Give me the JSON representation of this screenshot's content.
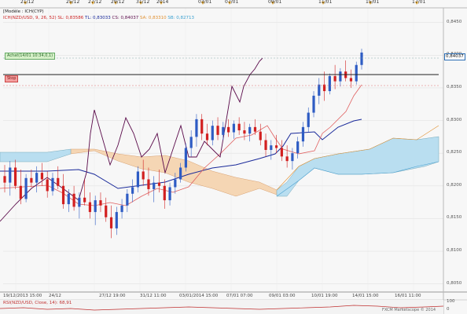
{
  "top_dates": [
    "21/12",
    "25/12",
    "27/12",
    "29/12",
    "31/12",
    "2014",
    "03/01",
    "07/01",
    "09/01",
    "11/01",
    "15/01",
    "17/01"
  ],
  "header": {
    "model": "[Modèle : ICH(CYP)",
    "indicator_line": {
      "name": "ICH(NZD/USD, 9, 26, 52)",
      "sl": "SL: 0,83586",
      "tl": "TL: 0,83033",
      "cs": "CS: 0,84037",
      "sa": "SA: 0,83310",
      "sb": "SB: 0,82713"
    }
  },
  "tags": {
    "achat": "Achat(14/01 10:34,0,1)",
    "stop": "Stop"
  },
  "price_axis": [
    "0,8450",
    "0,8400",
    "0,8350",
    "0,8300",
    "0,8250",
    "0,8200",
    "0,8150",
    "0,8100",
    "0,8050"
  ],
  "current_price": "0,84037",
  "bottom_dates": [
    "19/12/2013 15:00",
    "24/12",
    "27/12 19:00",
    "31/12 11:00",
    "03/01/2014 15:00",
    "07/01 07:00",
    "09/01 03:00",
    "10/01 19:00",
    "14/01 15:00",
    "16/01 11:00"
  ],
  "rsi_label": "RSI(NZD/USD, Close, 14): 68,91",
  "rsi_levels": [
    "100",
    "0"
  ],
  "footer": "FXCM Marketscope © 2014",
  "colors": {
    "up": "#2e5cc4",
    "down": "#d22020",
    "tenkan": "#e06060",
    "kijun": "#1a2a9a",
    "chikou": "#5a0a4a",
    "cloud_bull": "#b9def0",
    "cloud_bear": "#f5d6b4"
  },
  "chart_data": {
    "type": "candlestick",
    "title": "",
    "ylim": [
      0.804,
      0.847
    ],
    "candles": [
      [
        0.8215,
        0.8232,
        0.819,
        0.8205
      ],
      [
        0.8205,
        0.8238,
        0.8185,
        0.8228
      ],
      [
        0.8228,
        0.824,
        0.8195,
        0.82
      ],
      [
        0.82,
        0.8225,
        0.8172,
        0.818
      ],
      [
        0.818,
        0.8218,
        0.8175,
        0.8212
      ],
      [
        0.8212,
        0.8225,
        0.8198,
        0.8205
      ],
      [
        0.8205,
        0.823,
        0.819,
        0.822
      ],
      [
        0.822,
        0.8235,
        0.82,
        0.821
      ],
      [
        0.821,
        0.8222,
        0.8182,
        0.8192
      ],
      [
        0.8192,
        0.822,
        0.8185,
        0.8212
      ],
      [
        0.8212,
        0.823,
        0.8195,
        0.82
      ],
      [
        0.82,
        0.8218,
        0.8165,
        0.8172
      ],
      [
        0.8172,
        0.8195,
        0.816,
        0.8188
      ],
      [
        0.8188,
        0.82,
        0.8162,
        0.8168
      ],
      [
        0.8168,
        0.819,
        0.815,
        0.8182
      ],
      [
        0.8182,
        0.821,
        0.817,
        0.8175
      ],
      [
        0.8175,
        0.819,
        0.815,
        0.816
      ],
      [
        0.816,
        0.8185,
        0.814,
        0.8178
      ],
      [
        0.8178,
        0.819,
        0.816,
        0.817
      ],
      [
        0.817,
        0.8182,
        0.8145,
        0.8152
      ],
      [
        0.8152,
        0.817,
        0.812,
        0.8135
      ],
      [
        0.8135,
        0.8168,
        0.8125,
        0.816
      ],
      [
        0.816,
        0.818,
        0.815,
        0.817
      ],
      [
        0.817,
        0.8195,
        0.816,
        0.8188
      ],
      [
        0.8188,
        0.821,
        0.8175,
        0.8198
      ],
      [
        0.8198,
        0.823,
        0.819,
        0.8222
      ],
      [
        0.8222,
        0.824,
        0.82,
        0.821
      ],
      [
        0.821,
        0.8228,
        0.8185,
        0.8195
      ],
      [
        0.8195,
        0.8215,
        0.8175,
        0.8205
      ],
      [
        0.8205,
        0.8225,
        0.819,
        0.82
      ],
      [
        0.82,
        0.821,
        0.8165,
        0.8178
      ],
      [
        0.8178,
        0.8205,
        0.817,
        0.8198
      ],
      [
        0.8198,
        0.822,
        0.8188,
        0.821
      ],
      [
        0.821,
        0.8235,
        0.8205,
        0.8228
      ],
      [
        0.8228,
        0.8265,
        0.8222,
        0.8258
      ],
      [
        0.8258,
        0.8285,
        0.8245,
        0.8275
      ],
      [
        0.8275,
        0.831,
        0.826,
        0.8302
      ],
      [
        0.8302,
        0.831,
        0.827,
        0.828
      ],
      [
        0.828,
        0.8295,
        0.8262,
        0.827
      ],
      [
        0.827,
        0.83,
        0.8262,
        0.8292
      ],
      [
        0.8292,
        0.8305,
        0.827,
        0.8278
      ],
      [
        0.8278,
        0.8298,
        0.827,
        0.829
      ],
      [
        0.829,
        0.8302,
        0.8275,
        0.8282
      ],
      [
        0.8282,
        0.83,
        0.8272,
        0.8295
      ],
      [
        0.8295,
        0.8305,
        0.8278,
        0.8285
      ],
      [
        0.8285,
        0.8298,
        0.827,
        0.828
      ],
      [
        0.828,
        0.8295,
        0.8268,
        0.829
      ],
      [
        0.829,
        0.8302,
        0.8278,
        0.8283
      ],
      [
        0.8283,
        0.8295,
        0.8262,
        0.827
      ],
      [
        0.827,
        0.828,
        0.8245,
        0.8255
      ],
      [
        0.8255,
        0.827,
        0.824,
        0.8262
      ],
      [
        0.8262,
        0.8278,
        0.825,
        0.8258
      ],
      [
        0.8258,
        0.827,
        0.8238,
        0.8245
      ],
      [
        0.8245,
        0.8262,
        0.8228,
        0.8238
      ],
      [
        0.8238,
        0.8258,
        0.8225,
        0.825
      ],
      [
        0.825,
        0.8275,
        0.8242,
        0.8268
      ],
      [
        0.8268,
        0.8298,
        0.826,
        0.829
      ],
      [
        0.829,
        0.832,
        0.8282,
        0.8312
      ],
      [
        0.8312,
        0.8345,
        0.8305,
        0.8338
      ],
      [
        0.8338,
        0.8365,
        0.8325,
        0.8355
      ],
      [
        0.8355,
        0.8375,
        0.833,
        0.8345
      ],
      [
        0.8345,
        0.8372,
        0.834,
        0.8368
      ],
      [
        0.8368,
        0.8385,
        0.8348,
        0.836
      ],
      [
        0.836,
        0.838,
        0.8352,
        0.8375
      ],
      [
        0.8375,
        0.8392,
        0.836,
        0.8365
      ],
      [
        0.8365,
        0.8378,
        0.835,
        0.836
      ],
      [
        0.836,
        0.839,
        0.8355,
        0.8385
      ],
      [
        0.8385,
        0.841,
        0.8378,
        0.8404
      ]
    ]
  }
}
